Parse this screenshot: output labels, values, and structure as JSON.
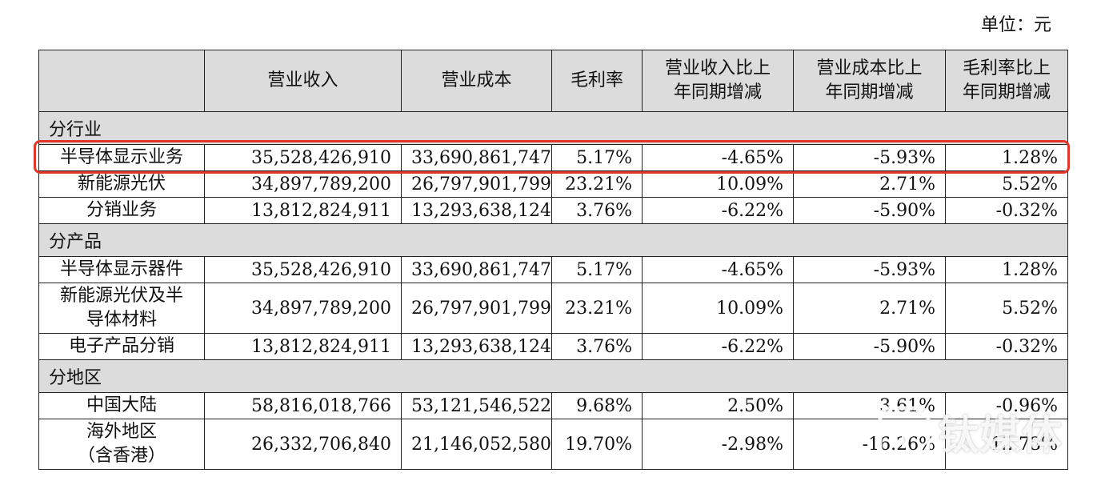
{
  "unit_label": "单位：元",
  "header": {
    "c0": "",
    "c1": "营业收入",
    "c2": "营业成本",
    "c3": "毛利率",
    "c4_l1": "营业收入比上",
    "c4_l2": "年同期增减",
    "c5_l1": "营业成本比上",
    "c5_l2": "年同期增减",
    "c6_l1": "毛利率比上",
    "c6_l2": "年同期增减"
  },
  "sections": {
    "industry": {
      "title": "分行业",
      "rows": [
        {
          "n1": "半导体显示业务",
          "n2": "",
          "revenue": "35,528,426,910",
          "cost": "33,690,861,747",
          "margin": "5.17%",
          "rev_yoy": "-4.65%",
          "cost_yoy": "-5.93%",
          "margin_yoy": "1.28%"
        },
        {
          "n1": "新能源光伏",
          "n2": "",
          "revenue": "34,897,789,200",
          "cost": "26,797,901,799",
          "margin": "23.21%",
          "rev_yoy": "10.09%",
          "cost_yoy": "2.71%",
          "margin_yoy": "5.52%"
        },
        {
          "n1": "分销业务",
          "n2": "",
          "revenue": "13,812,824,911",
          "cost": "13,293,638,124",
          "margin": "3.76%",
          "rev_yoy": "-6.22%",
          "cost_yoy": "-5.90%",
          "margin_yoy": "-0.32%"
        }
      ]
    },
    "product": {
      "title": "分产品",
      "rows": [
        {
          "n1": "半导体显示器件",
          "n2": "",
          "revenue": "35,528,426,910",
          "cost": "33,690,861,747",
          "margin": "5.17%",
          "rev_yoy": "-4.65%",
          "cost_yoy": "-5.93%",
          "margin_yoy": "1.28%"
        },
        {
          "n1": "新能源光伏及半",
          "n2": "导体材料",
          "revenue": "34,897,789,200",
          "cost": "26,797,901,799",
          "margin": "23.21%",
          "rev_yoy": "10.09%",
          "cost_yoy": "2.71%",
          "margin_yoy": "5.52%"
        },
        {
          "n1": "电子产品分销",
          "n2": "",
          "revenue": "13,812,824,911",
          "cost": "13,293,638,124",
          "margin": "3.76%",
          "rev_yoy": "-6.22%",
          "cost_yoy": "-5.90%",
          "margin_yoy": "-0.32%"
        }
      ]
    },
    "region": {
      "title": "分地区",
      "rows": [
        {
          "n1": "中国大陆",
          "n2": "",
          "revenue": "58,816,018,766",
          "cost": "53,121,546,522",
          "margin": "9.68%",
          "rev_yoy": "2.50%",
          "cost_yoy": "3.61%",
          "margin_yoy": "-0.96%"
        },
        {
          "n1": "海外地区",
          "n2": "（含香港）",
          "revenue": "26,332,706,840",
          "cost": "21,146,052,580",
          "margin": "19.70%",
          "rev_yoy": "-2.98%",
          "cost_yoy": "-16.26%",
          "margin_yoy": "12.73%"
        }
      ]
    }
  },
  "highlight": {
    "color": "#e2362a"
  },
  "watermark": {
    "text": "钛媒体",
    "icon": "tmt-logo-icon"
  }
}
